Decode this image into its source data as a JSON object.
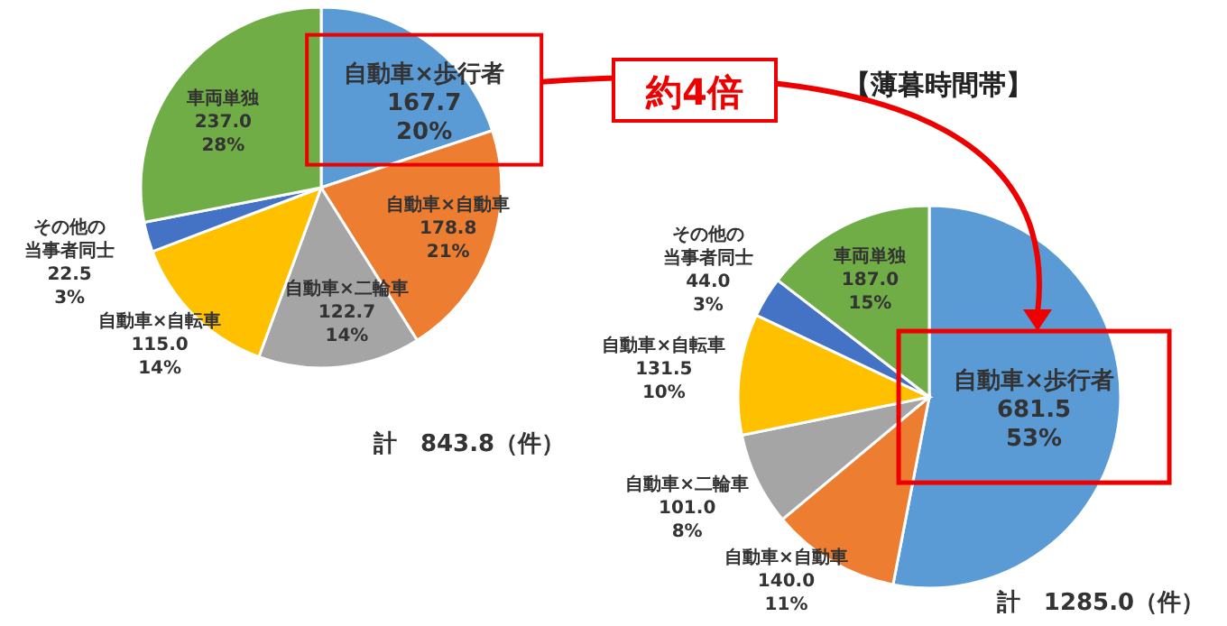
{
  "chart_data": [
    {
      "type": "pie",
      "categories": [
        "自動車×歩行者",
        "自動車×自動車",
        "自動車×二輪車",
        "自動車×自転車",
        "その他の当事者同士",
        "車両単独"
      ],
      "values": [
        167.7,
        178.8,
        122.7,
        115.0,
        22.5,
        237.0
      ],
      "colors": [
        "#5b9bd5",
        "#ed7d31",
        "#a5a5a5",
        "#ffc000",
        "#4472c4",
        "#70ad47"
      ],
      "value_labels": [
        "167.7\n20%",
        "178.8\n21%",
        "122.7\n14%",
        "115.0\n14%",
        "22.5\n3%",
        "237.0\n28%"
      ],
      "annotations": [
        "計　843.8（件）",
        "約4倍"
      ]
    },
    {
      "type": "pie",
      "title": "【薄暮時間帯】",
      "categories": [
        "自動車×歩行者",
        "自動車×自動車",
        "自動車×二輪車",
        "自動車×自転車",
        "その他の当事者同士",
        "車両単独"
      ],
      "values": [
        681.5,
        140.0,
        101.0,
        131.5,
        44.0,
        187.0
      ],
      "colors": [
        "#5b9bd5",
        "#ed7d31",
        "#a5a5a5",
        "#ffc000",
        "#4472c4",
        "#70ad47"
      ],
      "value_labels": [
        "681.5\n53%",
        "140.0\n11%",
        "101.0\n8%",
        "131.5\n10%",
        "44.0\n3%",
        "187.0\n15%"
      ],
      "annotations": [
        "計　1285.0（件）"
      ]
    }
  ]
}
